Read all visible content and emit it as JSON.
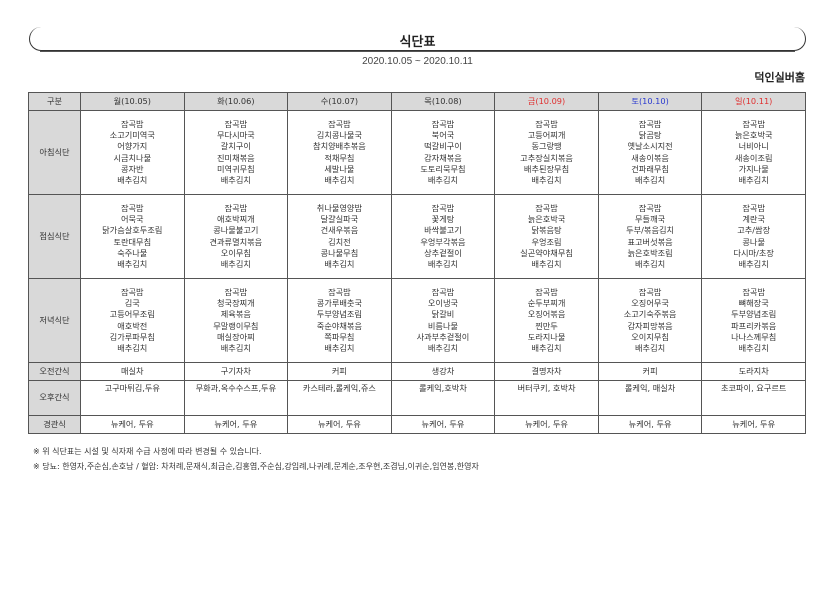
{
  "header": {
    "title": "식단표",
    "date_range": "2020.10.05 ~ 2020.10.11",
    "org": "덕인실버홈"
  },
  "table": {
    "corner": "구분",
    "days": [
      {
        "label": "월(10.05)",
        "color": "#333333"
      },
      {
        "label": "화(10.06)",
        "color": "#333333"
      },
      {
        "label": "수(10.07)",
        "color": "#333333"
      },
      {
        "label": "목(10.08)",
        "color": "#333333"
      },
      {
        "label": "금(10.09)",
        "color": "#e03030"
      },
      {
        "label": "토(10.10)",
        "color": "#2a3ad0"
      },
      {
        "label": "일(10.11)",
        "color": "#e03030"
      }
    ],
    "rows": [
      {
        "label": "아침식단",
        "cells": [
          [
            "잡곡밥",
            "소고기미역국",
            "어향가지",
            "시금치나물",
            "콩자반",
            "배추김치"
          ],
          [
            "잡곡밥",
            "무다시마국",
            "갈치구이",
            "진미채볶음",
            "미역귀무침",
            "배추김치"
          ],
          [
            "잡곡밥",
            "김치콩나물국",
            "참치양배추볶음",
            "적채무침",
            "세발나물",
            "배추김치"
          ],
          [
            "잡곡밥",
            "북어국",
            "떡갈비구이",
            "감자채볶음",
            "도토리묵무침",
            "배추김치"
          ],
          [
            "잡곡밥",
            "고등어찌개",
            "동그랑땡",
            "고추장실치볶음",
            "배추된장무침",
            "배추김치"
          ],
          [
            "잡곡밥",
            "닭곰탕",
            "옛날소시지전",
            "새송이볶음",
            "건파래무침",
            "배추김치"
          ],
          [
            "잡곡밥",
            "늙은호박국",
            "너비아니",
            "새송이조림",
            "가지나물",
            "배추김치"
          ]
        ]
      },
      {
        "label": "점심식단",
        "cells": [
          [
            "잡곡밥",
            "어묵국",
            "닭가슴살호두조림",
            "토란대무침",
            "숙주나물",
            "배추김치"
          ],
          [
            "잡곡밥",
            "애호박찌개",
            "콩나물불고기",
            "견과류멸치볶음",
            "오이무침",
            "배추김치"
          ],
          [
            "취나물영양밥",
            "달걀실파국",
            "건새우볶음",
            "김치전",
            "콩나물무침",
            "배추김치"
          ],
          [
            "잡곡밥",
            "꽃게탕",
            "바싹불고기",
            "우엉부각볶음",
            "상추겉절이",
            "배추김치"
          ],
          [
            "잡곡밥",
            "늙은호박국",
            "닭볶음탕",
            "우엉조림",
            "실곤약야채무침",
            "배추김치"
          ],
          [
            "잡곡밥",
            "무들깨국",
            "두부/볶음김치",
            "표고버섯볶음",
            "늙은호박조림",
            "배추김치"
          ],
          [
            "잡곡밥",
            "계란국",
            "고추/쌈장",
            "콩나물",
            "다시마/초장",
            "배추김치"
          ]
        ]
      },
      {
        "label": "저녁식단",
        "cells": [
          [
            "잡곡밥",
            "김국",
            "고등어무조림",
            "애호박전",
            "김가루파무침",
            "배추김치"
          ],
          [
            "잡곡밥",
            "청국장찌개",
            "제육볶음",
            "무말랭이무침",
            "매실장아찌",
            "배추김치"
          ],
          [
            "잡곡밥",
            "콩가루배춧국",
            "두부양념조림",
            "죽순야채볶음",
            "쪽파무침",
            "배추김치"
          ],
          [
            "잡곡밥",
            "오이냉국",
            "닭갈비",
            "비름나물",
            "사과부추겉절이",
            "배추김치"
          ],
          [
            "잡곡밥",
            "순두부찌개",
            "오징어볶음",
            "찐만두",
            "도라지나물",
            "배추김치"
          ],
          [
            "잡곡밥",
            "오징어무국",
            "소고기숙주볶음",
            "감자피망볶음",
            "오이지무침",
            "배추김치"
          ],
          [
            "잡곡밥",
            "뼈해장국",
            "두부양념조림",
            "파프리카볶음",
            "나나스께무침",
            "배추김치"
          ]
        ]
      }
    ],
    "snacks": [
      {
        "label": "오전간식",
        "cells": [
          "매실차",
          "구기자차",
          "커피",
          "생강차",
          "결명자차",
          "커피",
          "도라지차"
        ]
      },
      {
        "label": "오후간식",
        "cells": [
          "고구마튀김,두유",
          "무화과,옥수수스프,두유",
          "카스테라,롤케익,쥬스",
          "롤케익,호박차",
          "버터쿠키, 호박차",
          "롤케익, 매실차",
          "초코파이, 요구르트"
        ]
      },
      {
        "label": "경관식",
        "cells": [
          "뉴케어, 두유",
          "뉴케어, 두유",
          "뉴케어, 두유",
          "뉴케어, 두유",
          "뉴케어, 두유",
          "뉴케어, 두유",
          "뉴케어, 두유"
        ]
      }
    ]
  },
  "notes": [
    "※ 위 식단표는 시설 및 식자재 수급 사정에 따라 변경될 수 있습니다.",
    "※ 당뇨: 한영자,주순심,손호남 / 혈압: 차처례,문재식,최금순,김홍엽,주순심,강임례,나귀례,문계순,조우현,조겸님,이귀순,임연봉,한영자"
  ]
}
